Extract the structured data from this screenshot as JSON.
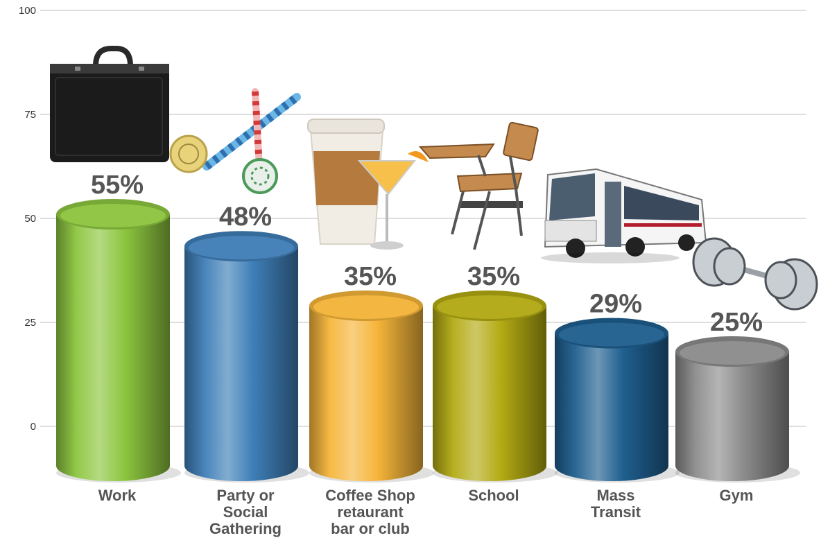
{
  "chart_data": {
    "type": "bar",
    "title": "",
    "xlabel": "",
    "ylabel": "",
    "ylim": [
      0,
      100
    ],
    "yticks": [
      "0",
      "25",
      "50",
      "75",
      "100"
    ],
    "grid": true,
    "legend": "none",
    "categories": [
      [
        "Work"
      ],
      [
        "Party or",
        "Social",
        "Gathering"
      ],
      [
        "Coffee Shop",
        "retaurant",
        "bar or club"
      ],
      [
        "School"
      ],
      [
        "Mass",
        "Transit"
      ],
      [
        "Gym"
      ]
    ],
    "values": [
      55,
      48,
      35,
      35,
      29,
      25
    ],
    "value_labels": [
      "55%",
      "48%",
      "35%",
      "35%",
      "29%",
      "25%"
    ],
    "colors": [
      "#8dc63f",
      "#3f7fb8",
      "#f6b53a",
      "#b3ab13",
      "#1f5f8f",
      "#8c8c8c"
    ],
    "icons": [
      "briefcase-icon",
      "party-blower-icon",
      "coffee-cup-cocktail-icon",
      "school-desk-icon",
      "bus-icon",
      "dumbbell-icon"
    ]
  }
}
